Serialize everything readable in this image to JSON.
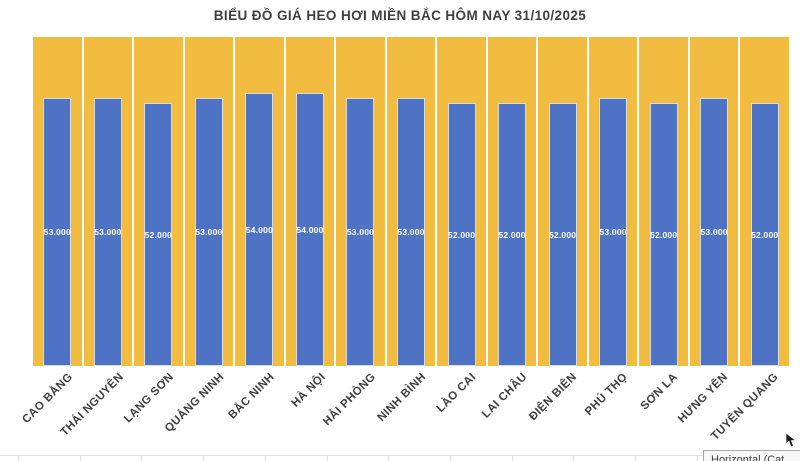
{
  "chart_data": {
    "type": "bar",
    "title": "BIỂU ĐỒ GIÁ HEO HƠI MIỀN BẮC HÔM NAY 31/10/2025",
    "categories": [
      "CAO BẰNG",
      "THÁI NGUYÊN",
      "LẠNG SƠN",
      "QUẢNG NINH",
      "BẮC NINH",
      "HÀ NỘI",
      "HẢI PHÒNG",
      "NINH BÌNH",
      "LÀO CAI",
      "LAI CHÂU",
      "ĐIỆN BIÊN",
      "PHÚ THỌ",
      "SƠN LA",
      "HƯNG YÊN",
      "TUYÊN QUANG"
    ],
    "values": [
      53000,
      53000,
      52000,
      53000,
      54000,
      54000,
      53000,
      53000,
      52000,
      52000,
      52000,
      53000,
      52000,
      53000,
      52000
    ],
    "value_labels": [
      "53.000",
      "53.000",
      "52.000",
      "53.000",
      "54.000",
      "54.000",
      "53.000",
      "53.000",
      "52.000",
      "52.000",
      "52.000",
      "53.000",
      "52.000",
      "53.000",
      "52.000"
    ],
    "xlabel": "",
    "ylabel": "",
    "ylim": [
      0,
      65000
    ],
    "legend": "none",
    "grid": false,
    "axis_label_rotation": -45,
    "bar_color": "#4E73C5",
    "background_band_color": "#F2BC41",
    "value_label_color": "#FFFFFF",
    "axis_text_color": "#3F3F3F"
  },
  "tooltip": {
    "text": "Horizontal (Cat"
  },
  "icons": {
    "mouse_cursor": "arrow-pointer"
  }
}
